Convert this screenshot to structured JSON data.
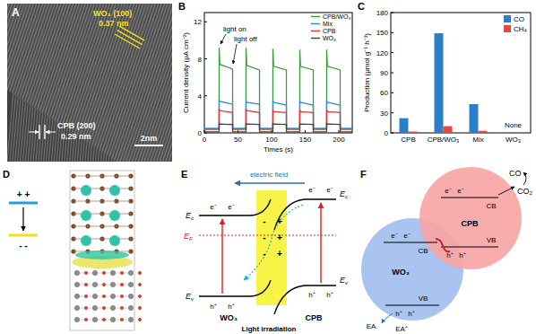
{
  "panel_letters": [
    "A",
    "B",
    "C",
    "D",
    "E",
    "F"
  ],
  "panels": {
    "A": {
      "labels": [
        "WO₃ (100)",
        "0.37 nm",
        "CPB (200)",
        "0.29 nm",
        "2nm"
      ]
    },
    "D": {
      "labels": [
        "+ +",
        "- -"
      ]
    },
    "E": {
      "labels": [
        "electric field",
        "Ec",
        "EF",
        "Ev",
        "Ec",
        "Ev",
        "e⁻",
        "e⁻",
        "e⁻",
        "e⁻",
        "h⁺",
        "h⁺",
        "h⁺",
        "h⁺",
        "-",
        "-",
        "-",
        "+",
        "+",
        "+",
        "WO₃",
        "CPB",
        "Light irradiation"
      ]
    },
    "F": {
      "labels": [
        "CO",
        "CO₂",
        "CPB",
        "CB",
        "VB",
        "e⁻",
        "e⁻",
        "h⁺",
        "h⁺",
        "WO₃",
        "CB",
        "VB",
        "e⁻",
        "e⁻",
        "h⁺",
        "h⁺",
        "EA",
        "EA⁺"
      ]
    }
  },
  "chart_data": [
    {
      "type": "line",
      "x_label": "Times (s)",
      "y_label": "Current density (μA cm⁻²)",
      "x": [
        0,
        21.9,
        22,
        23,
        42,
        42.1,
        61.9,
        62,
        63,
        82,
        82.1,
        101.9,
        102,
        103,
        122,
        122.1,
        141.9,
        142,
        143,
        162,
        162.1,
        181.9,
        182,
        183,
        202,
        202.1,
        220
      ],
      "series": [
        {
          "name": "CPB/WO₃",
          "color": "#3c9a3c",
          "values": [
            0.4,
            0.4,
            9.2,
            7.4,
            6.9,
            0.4,
            0.4,
            9.2,
            7.3,
            6.8,
            0.4,
            0.4,
            9.1,
            7.2,
            6.8,
            0.4,
            0.4,
            9.0,
            7.2,
            6.8,
            0.4,
            0.4,
            9.0,
            7.2,
            6.8,
            0.4,
            0.4
          ]
        },
        {
          "name": "Mix",
          "color": "#3a8fc8",
          "values": [
            0.5,
            0.5,
            3.6,
            3.4,
            3.1,
            0.5,
            0.5,
            3.5,
            3.3,
            3.1,
            0.5,
            0.5,
            3.5,
            3.3,
            3.0,
            0.5,
            0.5,
            3.5,
            3.3,
            3.0,
            0.5,
            0.5,
            3.5,
            3.3,
            3.0,
            0.5,
            0.5
          ]
        },
        {
          "name": "CPB",
          "color": "#e23a3a",
          "values": [
            0.4,
            0.4,
            2.6,
            2.4,
            2.2,
            0.4,
            0.4,
            2.6,
            2.4,
            2.2,
            0.4,
            0.4,
            2.5,
            2.3,
            2.2,
            0.4,
            0.4,
            2.5,
            2.3,
            2.2,
            0.4,
            0.4,
            2.5,
            2.3,
            2.2,
            0.4,
            0.4
          ]
        },
        {
          "name": "WO₃",
          "color": "#444444",
          "values": [
            0.1,
            0.1,
            1.0,
            0.95,
            0.9,
            0.1,
            0.1,
            1.0,
            0.95,
            0.9,
            0.1,
            0.1,
            1.0,
            0.95,
            0.9,
            0.1,
            0.1,
            1.0,
            0.95,
            0.9,
            0.1,
            0.1,
            1.0,
            0.95,
            0.9,
            0.1,
            0.1
          ]
        }
      ],
      "xlim": [
        0,
        220
      ],
      "xticks": [
        0,
        50,
        100,
        150,
        200
      ],
      "ylim": [
        0,
        13
      ],
      "yticks": [
        0,
        4,
        8,
        12
      ],
      "legend": "top-right",
      "annotations": [
        "light on",
        "light off"
      ]
    },
    {
      "type": "bar",
      "y_label": "Production (μmol g⁻¹ h⁻¹)",
      "categories": [
        "CPB",
        "CPB/WO₃",
        "Mix",
        "WO₃"
      ],
      "series": [
        {
          "name": "CO",
          "color": "#2a7fc9",
          "values": [
            22,
            149,
            43,
            0
          ]
        },
        {
          "name": "CH₄",
          "color": "#e8473f",
          "values": [
            2,
            10,
            3,
            0
          ]
        }
      ],
      "ylim": [
        0,
        180
      ],
      "yticks": [
        0,
        30,
        60,
        90,
        120,
        150,
        180
      ],
      "legend": "top-right",
      "annotations": [
        "None"
      ]
    }
  ]
}
